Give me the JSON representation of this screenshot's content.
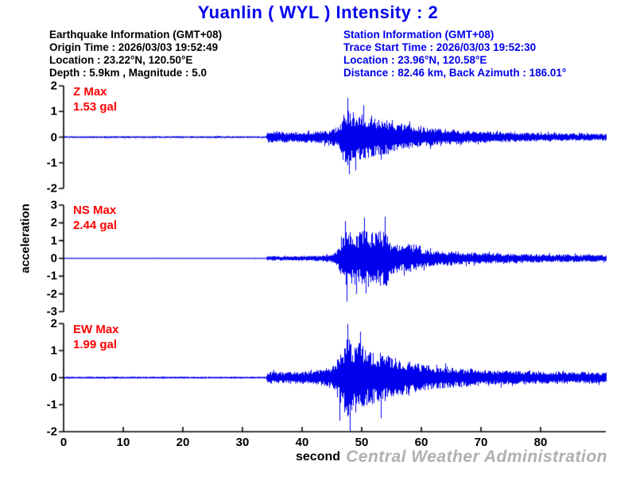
{
  "title": "Yuanlin ( WYL )  Intensity : 2",
  "colors": {
    "blue_text": "#0000ee",
    "trace": "#0000ee",
    "max_label_red": "#ff0000",
    "axis_black": "#000000",
    "watermark_gray": "#b0b0b0"
  },
  "eq_info": {
    "lines": [
      "Earthquake Information  (GMT+08)",
      "Origin Time : 2026/03/03 19:52:49",
      "Location : 23.22°N, 120.50°E",
      "Depth : 5.9km , Magnitude : 5.0"
    ]
  },
  "station_info": {
    "lines": [
      "Station Information  (GMT+08)",
      "Trace Start Time : 2026/03/03 19:52:30",
      "Location : 23.96°N, 120.58°E",
      "Distance : 82.46 km, Back Azimuth : 186.01°"
    ]
  },
  "y_axis_label": "acceleration",
  "x_axis": {
    "label": "second",
    "ticks": [
      0,
      10,
      20,
      30,
      40,
      50,
      60,
      70,
      80
    ],
    "range": [
      0,
      91
    ]
  },
  "watermark": "Central Weather Administration",
  "panels": [
    {
      "id": "Z",
      "max_label": "Z Max",
      "max_value_label": "1.53 gal",
      "yticks": [
        2,
        1,
        0,
        -1,
        -2
      ]
    },
    {
      "id": "NS",
      "max_label": "NS Max",
      "max_value_label": "2.44 gal",
      "yticks": [
        3,
        2,
        1,
        0,
        -1,
        -2,
        -3
      ]
    },
    {
      "id": "EW",
      "max_label": "EW Max",
      "max_value_label": "1.99 gal",
      "yticks": [
        2,
        1,
        0,
        -1,
        -2
      ]
    }
  ],
  "chart_data": {
    "type": "line",
    "title": "Yuanlin ( WYL )  Intensity : 2",
    "xlabel": "second",
    "ylabel": "acceleration",
    "units": "gal",
    "x_range_seconds": [
      0,
      91
    ],
    "p_arrival_s": 34.2,
    "s_arrival_s": 46.0,
    "series": [
      {
        "name": "Z",
        "max_gal": 1.53,
        "peak_time_s": 47.6,
        "ylim": [
          -2,
          2
        ],
        "envelope": [
          [
            0,
            0.05
          ],
          [
            33.9,
            0.05
          ],
          [
            34.2,
            0.3
          ],
          [
            38,
            0.26
          ],
          [
            42,
            0.3
          ],
          [
            44.5,
            0.35
          ],
          [
            45.8,
            0.55
          ],
          [
            47,
            1.0
          ],
          [
            47.6,
            1.53
          ],
          [
            48.4,
            1.1
          ],
          [
            50.3,
            1.2
          ],
          [
            52,
            1.0
          ],
          [
            54,
            0.9
          ],
          [
            56,
            0.75
          ],
          [
            58,
            0.62
          ],
          [
            60,
            0.52
          ],
          [
            63,
            0.45
          ],
          [
            66,
            0.38
          ],
          [
            70,
            0.3
          ],
          [
            75,
            0.26
          ],
          [
            80,
            0.22
          ],
          [
            85,
            0.2
          ],
          [
            91,
            0.18
          ]
        ],
        "spikes": [
          [
            47.6,
            1.53
          ],
          [
            47.9,
            -1.45
          ],
          [
            50.3,
            1.25
          ],
          [
            48.9,
            -1.3
          ]
        ]
      },
      {
        "name": "NS",
        "max_gal": 2.44,
        "peak_time_s": 47.5,
        "ylim": [
          -3,
          3
        ],
        "envelope": [
          [
            0,
            0.04
          ],
          [
            33.9,
            0.04
          ],
          [
            34.2,
            0.18
          ],
          [
            38,
            0.16
          ],
          [
            42,
            0.2
          ],
          [
            44.5,
            0.28
          ],
          [
            45.8,
            0.6
          ],
          [
            46.8,
            1.6
          ],
          [
            47.5,
            2.44
          ],
          [
            48.6,
            1.7
          ],
          [
            50.4,
            2.1
          ],
          [
            51.5,
            1.8
          ],
          [
            53.9,
            2.2
          ],
          [
            55,
            1.2
          ],
          [
            56.5,
            0.95
          ],
          [
            58,
            1.05
          ],
          [
            60,
            0.75
          ],
          [
            62,
            0.6
          ],
          [
            64,
            0.55
          ],
          [
            67,
            0.5
          ],
          [
            70,
            0.42
          ],
          [
            74,
            0.36
          ],
          [
            78,
            0.33
          ],
          [
            83,
            0.3
          ],
          [
            91,
            0.27
          ]
        ],
        "spikes": [
          [
            47.5,
            -2.44
          ],
          [
            47.2,
            2.1
          ],
          [
            50.4,
            2.3
          ],
          [
            53.9,
            2.35
          ],
          [
            49.0,
            -2.0
          ]
        ]
      },
      {
        "name": "EW",
        "max_gal": 1.99,
        "peak_time_s": 47.6,
        "ylim": [
          -2,
          2
        ],
        "envelope": [
          [
            0,
            0.05
          ],
          [
            33.9,
            0.05
          ],
          [
            34.2,
            0.3
          ],
          [
            38,
            0.28
          ],
          [
            42,
            0.33
          ],
          [
            44.5,
            0.45
          ],
          [
            45.8,
            0.8
          ],
          [
            46.6,
            1.5
          ],
          [
            47.6,
            1.99
          ],
          [
            48.6,
            1.6
          ],
          [
            49.7,
            1.75
          ],
          [
            51,
            1.35
          ],
          [
            53,
            1.25
          ],
          [
            55,
            1.05
          ],
          [
            57,
            0.85
          ],
          [
            59,
            0.72
          ],
          [
            61,
            0.6
          ],
          [
            63,
            0.55
          ],
          [
            66,
            0.46
          ],
          [
            70,
            0.4
          ],
          [
            74,
            0.35
          ],
          [
            78,
            0.32
          ],
          [
            83,
            0.3
          ],
          [
            91,
            0.27
          ]
        ],
        "spikes": [
          [
            47.6,
            1.99
          ],
          [
            48.0,
            -1.97
          ],
          [
            46.3,
            -1.6
          ],
          [
            49.7,
            1.7
          ],
          [
            53.2,
            -1.5
          ]
        ]
      }
    ]
  }
}
